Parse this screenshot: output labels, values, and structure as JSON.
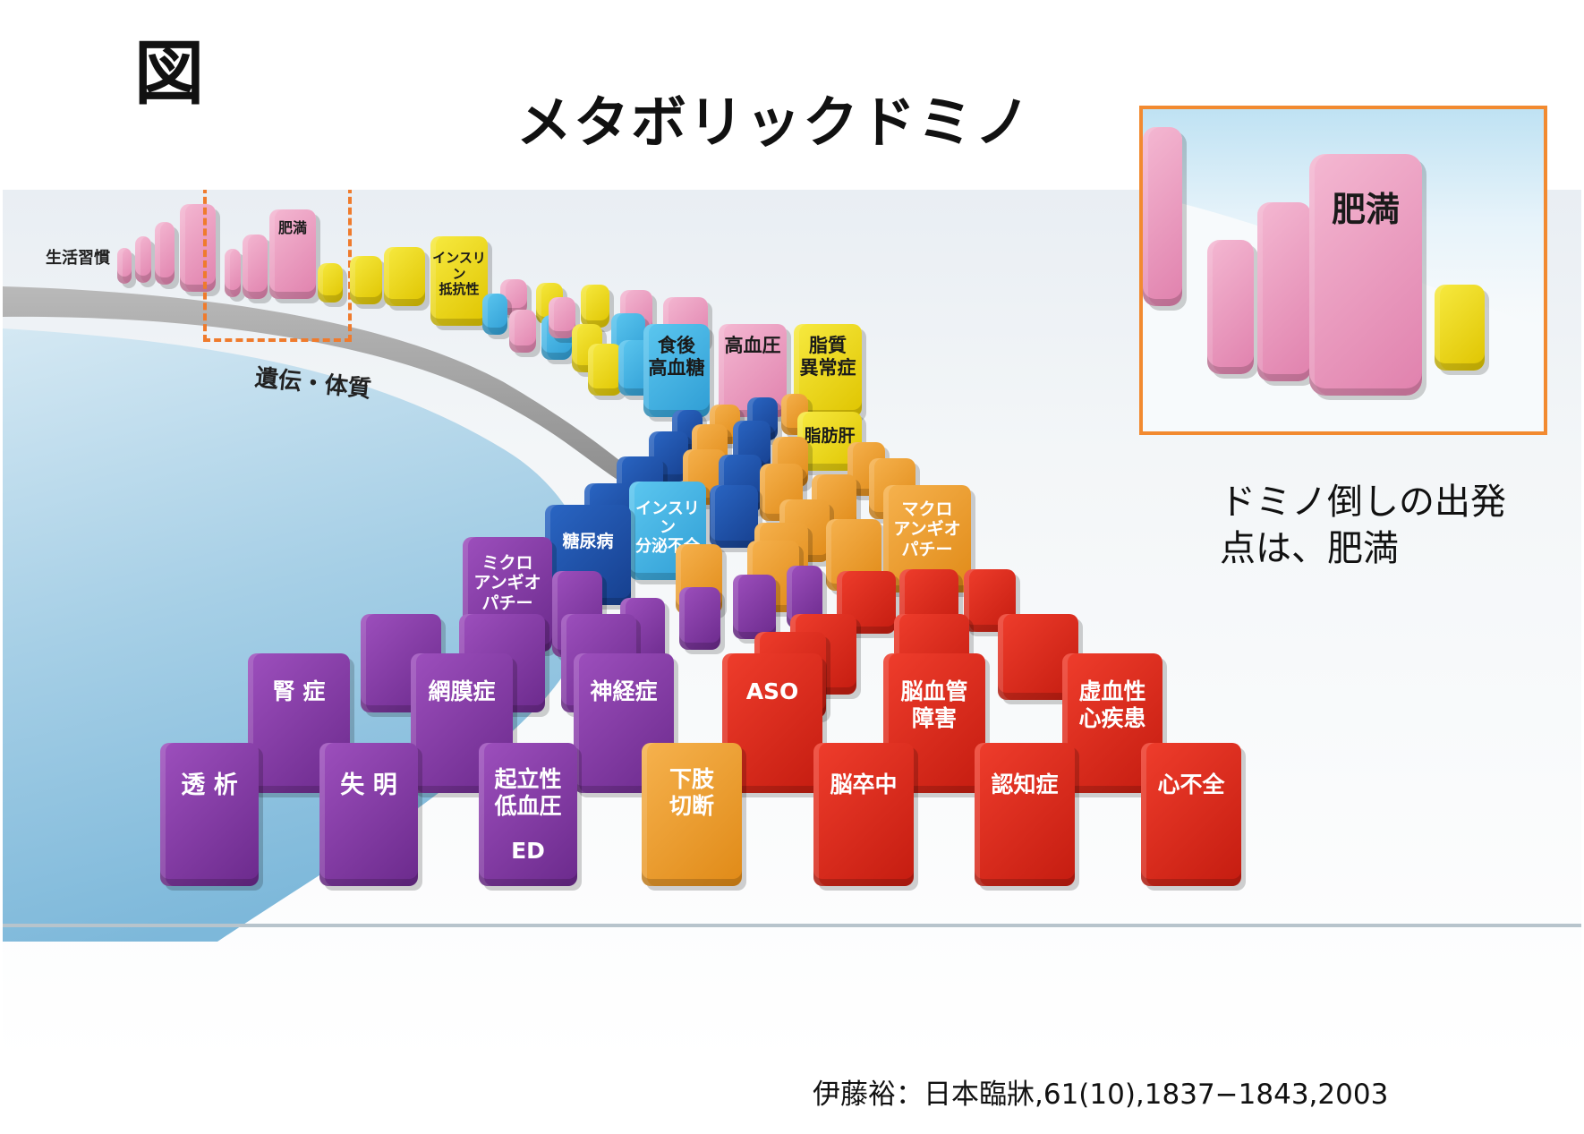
{
  "figure_label": "図",
  "title": "メタボリックドミノ",
  "diagram": {
    "lifestyle_label": "生活習慣",
    "heredity_label": "遺伝・体質",
    "labeled_dominoes": {
      "obesity": "肥満",
      "insulin_resistance": "インスリン\n抵抗性",
      "postprandial_hyperglycemia": "食後\n高血糖",
      "hypertension": "高血圧",
      "dyslipidemia": "脂質\n異常症",
      "fatty_liver": "脂肪肝",
      "insulin_secretion_deficiency": "インスリン\n分泌不全",
      "diabetes": "糖尿病",
      "macroangiopathy": "マクロ\nアンギオ\nパチー",
      "microangiopathy": "ミクロ\nアンギオ\nパチー",
      "nephropathy": "腎 症",
      "retinopathy": "網膜症",
      "neuropathy": "神経症",
      "aso": "ASO",
      "cerebrovascular_disorder": "脳血管\n障害",
      "ischemic_heart_disease": "虚血性\n心疾患",
      "dialysis": "透 析",
      "blindness": "失 明",
      "orthostatic_hypotension": "起立性\n低血圧",
      "ed": "ED",
      "amputation": "下肢\n切断",
      "stroke": "脳卒中",
      "dementia": "認知症",
      "heart_failure": "心不全"
    },
    "colors": {
      "lifestyle": "#e89ac0",
      "insulin_resistance": "#efdb14",
      "hyperglycemia": "#3fb3e4",
      "diabetes": "#1e52a8",
      "macro": "#ef9a2a",
      "micro": "#8a3bb0",
      "cardiovascular": "#e02a1c",
      "highlight_border": "#ef7b2d"
    }
  },
  "inset": {
    "label": "肥満"
  },
  "caption": "ドミノ倒しの出発\n点は、肥満",
  "citation": "伊藤裕：日本臨牀,61(10),1837−1843,2003"
}
